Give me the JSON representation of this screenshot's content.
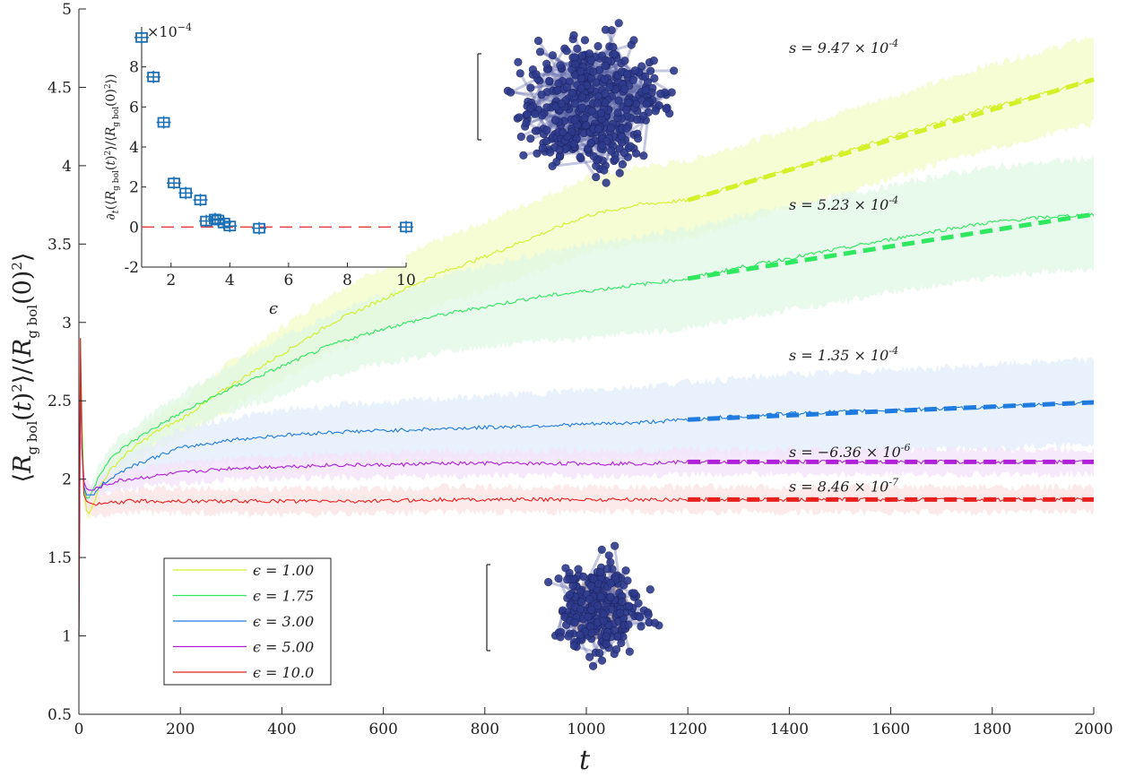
{
  "chart_data": [
    {
      "type": "line",
      "title": "",
      "xlabel": "t",
      "ylabel": "⟨R_g bol(t)²⟩/⟨R_g bol(0)²⟩",
      "xlim": [
        0,
        2000
      ],
      "ylim": [
        0.5,
        5
      ],
      "xticks": [
        0,
        200,
        400,
        600,
        800,
        1000,
        1200,
        1400,
        1600,
        1800,
        2000
      ],
      "yticks": [
        0.5,
        1,
        1.5,
        2,
        2.5,
        3,
        3.5,
        4,
        4.5,
        5
      ],
      "x": [
        0,
        3,
        6,
        10,
        15,
        20,
        30,
        40,
        60,
        80,
        100,
        150,
        200,
        300,
        400,
        500,
        600,
        700,
        800,
        900,
        1000,
        1100,
        1200,
        1300,
        1400,
        1500,
        1600,
        1700,
        1800,
        1900,
        2000
      ],
      "series": [
        {
          "name": "ϵ = 1.00",
          "color": "#d4f028",
          "band_color": "#f3fbc6",
          "values": [
            1.0,
            2.8,
            2.4,
            1.95,
            1.8,
            1.78,
            1.85,
            1.95,
            2.05,
            2.12,
            2.18,
            2.3,
            2.38,
            2.6,
            2.8,
            3.0,
            3.15,
            3.3,
            3.42,
            3.55,
            3.68,
            3.75,
            3.78,
            3.88,
            3.98,
            4.08,
            4.18,
            4.28,
            4.38,
            4.46,
            4.55
          ],
          "band_halfwidth": [
            0,
            0.05,
            0.05,
            0.05,
            0.05,
            0.05,
            0.05,
            0.06,
            0.07,
            0.08,
            0.09,
            0.1,
            0.12,
            0.15,
            0.17,
            0.19,
            0.2,
            0.21,
            0.22,
            0.23,
            0.24,
            0.24,
            0.25,
            0.25,
            0.25,
            0.26,
            0.26,
            0.26,
            0.27,
            0.27,
            0.28
          ],
          "fit_slope": "s = 9.47 × 10^-4"
        },
        {
          "name": "ϵ = 1.75",
          "color": "#2fe860",
          "band_color": "#dff8e6",
          "values": [
            1.0,
            2.9,
            2.3,
            1.95,
            1.88,
            1.88,
            1.95,
            2.03,
            2.12,
            2.18,
            2.23,
            2.33,
            2.42,
            2.58,
            2.72,
            2.86,
            2.96,
            3.04,
            3.1,
            3.16,
            3.2,
            3.24,
            3.28,
            3.35,
            3.41,
            3.47,
            3.53,
            3.59,
            3.64,
            3.67,
            3.69
          ],
          "band_halfwidth": [
            0,
            0.05,
            0.05,
            0.05,
            0.05,
            0.05,
            0.05,
            0.06,
            0.07,
            0.08,
            0.09,
            0.1,
            0.12,
            0.15,
            0.18,
            0.2,
            0.22,
            0.24,
            0.26,
            0.28,
            0.3,
            0.31,
            0.32,
            0.33,
            0.33,
            0.34,
            0.34,
            0.35,
            0.35,
            0.35,
            0.36
          ],
          "fit_slope": "s = 5.23 × 10^-4"
        },
        {
          "name": "ϵ = 3.00",
          "color": "#1f7be0",
          "band_color": "#e2eefb",
          "values": [
            1.0,
            2.6,
            2.2,
            1.95,
            1.9,
            1.9,
            1.9,
            1.95,
            2.0,
            2.04,
            2.08,
            2.14,
            2.2,
            2.25,
            2.28,
            2.3,
            2.31,
            2.32,
            2.33,
            2.34,
            2.35,
            2.36,
            2.38,
            2.4,
            2.42,
            2.43,
            2.44,
            2.45,
            2.46,
            2.48,
            2.49
          ],
          "band_halfwidth": [
            0,
            0.05,
            0.05,
            0.05,
            0.05,
            0.05,
            0.05,
            0.06,
            0.07,
            0.08,
            0.09,
            0.1,
            0.12,
            0.14,
            0.16,
            0.17,
            0.18,
            0.19,
            0.2,
            0.21,
            0.22,
            0.23,
            0.24,
            0.24,
            0.25,
            0.25,
            0.26,
            0.26,
            0.27,
            0.27,
            0.27
          ],
          "fit_slope": "s = 1.35 × 10^-4"
        },
        {
          "name": "ϵ = 5.00",
          "color": "#b020d8",
          "band_color": "#f3e2fa",
          "values": [
            1.0,
            2.7,
            2.2,
            1.98,
            1.94,
            1.93,
            1.93,
            1.95,
            1.97,
            1.99,
            2.0,
            2.02,
            2.04,
            2.07,
            2.08,
            2.09,
            2.09,
            2.1,
            2.1,
            2.1,
            2.1,
            2.1,
            2.11,
            2.11,
            2.11,
            2.11,
            2.11,
            2.11,
            2.11,
            2.11,
            2.11
          ],
          "band_halfwidth": [
            0,
            0.05,
            0.05,
            0.05,
            0.05,
            0.05,
            0.05,
            0.05,
            0.05,
            0.06,
            0.06,
            0.06,
            0.07,
            0.07,
            0.07,
            0.08,
            0.08,
            0.08,
            0.08,
            0.08,
            0.08,
            0.08,
            0.08,
            0.08,
            0.08,
            0.08,
            0.08,
            0.08,
            0.08,
            0.08,
            0.08
          ],
          "fit_slope": "s = −6.36 × 10^-6"
        },
        {
          "name": "ϵ = 10.0",
          "color": "#e8201e",
          "band_color": "#fbe3e3",
          "values": [
            1.0,
            2.9,
            2.2,
            1.9,
            1.86,
            1.85,
            1.84,
            1.84,
            1.85,
            1.85,
            1.86,
            1.86,
            1.86,
            1.86,
            1.86,
            1.86,
            1.86,
            1.87,
            1.87,
            1.87,
            1.87,
            1.87,
            1.87,
            1.87,
            1.87,
            1.87,
            1.87,
            1.87,
            1.87,
            1.87,
            1.87
          ],
          "band_halfwidth": [
            0,
            0.05,
            0.05,
            0.06,
            0.06,
            0.07,
            0.07,
            0.07,
            0.07,
            0.07,
            0.07,
            0.08,
            0.08,
            0.08,
            0.08,
            0.08,
            0.08,
            0.08,
            0.08,
            0.08,
            0.08,
            0.08,
            0.08,
            0.08,
            0.08,
            0.08,
            0.08,
            0.08,
            0.08,
            0.08,
            0.08
          ],
          "fit_slope": "s = 8.46 × 10^-7"
        }
      ],
      "fit_range": [
        1200,
        2000
      ],
      "legend_position": "bottom-left"
    },
    {
      "type": "scatter",
      "title": "",
      "xlabel": "ϵ",
      "ylabel": "∂t(⟨R_g bol(t)²⟩/⟨R_g bol(0)²⟩)",
      "y_multiplier": "×10^-4",
      "xlim": [
        1,
        10
      ],
      "ylim": [
        -2,
        10
      ],
      "xticks": [
        2,
        4,
        6,
        8,
        10
      ],
      "yticks": [
        -2,
        0,
        2,
        4,
        6,
        8
      ],
      "marker_color": "#1a6fb5",
      "x": [
        1.0,
        1.4,
        1.75,
        2.1,
        2.5,
        3.0,
        3.2,
        3.5,
        3.6,
        3.8,
        4.0,
        5.0,
        10.0
      ],
      "y": [
        9.47,
        7.5,
        5.23,
        2.2,
        1.7,
        1.35,
        0.3,
        0.4,
        0.35,
        0.2,
        0.05,
        -0.06,
        0.0
      ],
      "reference_line": {
        "y": 0,
        "style": "dashed",
        "color": "#e83a3a"
      }
    }
  ],
  "texts": {
    "x_axis_label": "t",
    "y_axis_label_main": "⟨R",
    "inset_multiplier": "×10",
    "inset_multiplier_exp": "−4",
    "inset_x_label": "ϵ",
    "inset_y_label": "∂t(⟨R g bol(t)²⟩/⟨R g bol(0)²⟩)"
  },
  "molecule_images": {
    "top": "extended-polymer-chain",
    "bottom": "collapsed-polymer-globule",
    "bead_color": "#2e3a8c"
  }
}
